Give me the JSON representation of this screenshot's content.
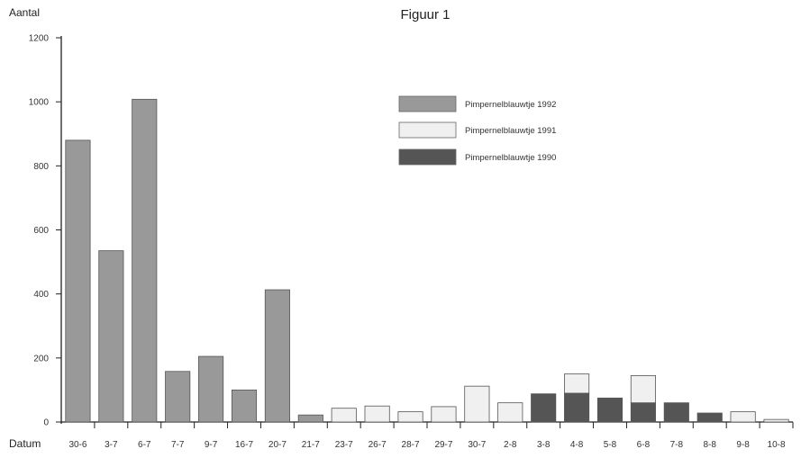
{
  "chart_data": {
    "type": "bar",
    "title": "Figuur 1",
    "ylabel": "Aantal",
    "xlabel": "Datum",
    "ylim": [
      0,
      1200
    ],
    "yticks": [
      0,
      200,
      400,
      600,
      800,
      1000,
      1200
    ],
    "grid": false,
    "legend_position": "top-right",
    "categories": [
      "30-6",
      "3-7",
      "6-7",
      "7-7",
      "9-7",
      "16-7",
      "20-7",
      "21-7",
      "23-7",
      "26-7",
      "28-7",
      "29-7",
      "30-7",
      "2-8",
      "3-8",
      "4-8",
      "5-8",
      "6-8",
      "7-8",
      "8-8",
      "9-8",
      "10-8"
    ],
    "series": [
      {
        "name": "Pimpernelblauwtje 1992",
        "color": "#999999",
        "values": [
          880,
          535,
          1008,
          158,
          205,
          100,
          413,
          22,
          0,
          0,
          0,
          0,
          0,
          0,
          0,
          0,
          0,
          0,
          0,
          0,
          0,
          0
        ]
      },
      {
        "name": "Pimpernelblauwtje 1991",
        "color": "#f0f0f0",
        "values": [
          0,
          0,
          0,
          0,
          0,
          0,
          0,
          0,
          43,
          50,
          32,
          48,
          112,
          60,
          0,
          60,
          0,
          85,
          0,
          0,
          32,
          8
        ]
      },
      {
        "name": "Pimpernelblauwtje 1990",
        "color": "#555555",
        "values": [
          0,
          0,
          0,
          0,
          0,
          0,
          0,
          0,
          0,
          0,
          0,
          0,
          0,
          0,
          88,
          90,
          75,
          60,
          60,
          28,
          0,
          0
        ]
      }
    ]
  }
}
